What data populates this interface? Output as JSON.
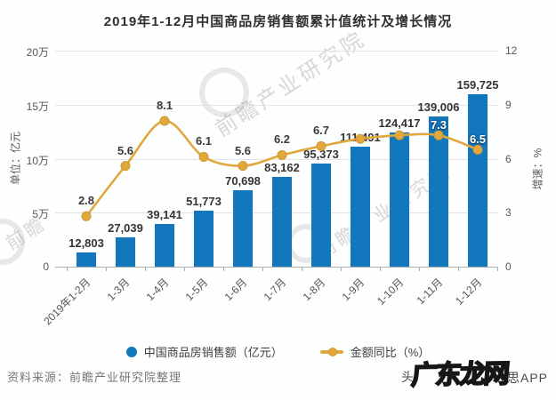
{
  "title": "2019年1-12月中国商品房销售额累计值统计及增长情况",
  "source": "资料来源：前瞻产业研究院整理",
  "colors": {
    "bar": "#1377BE",
    "line": "#E1A83E",
    "grid": "#e3e3e3",
    "label_dark": "#343434",
    "label_white": "#ffffff"
  },
  "chart_data": {
    "type": "bar",
    "subtype": "bar+line combo",
    "title": "2019年1-12月中国商品房销售额累计值统计及增长情况",
    "categories": [
      "2019年1-2月",
      "1-3月",
      "1-4月",
      "1-5月",
      "1-6月",
      "1-7月",
      "1-8月",
      "1-9月",
      "1-10月",
      "1-11月",
      "1-12月"
    ],
    "bar_series": {
      "name": "中国商品房销售额（亿元）",
      "values": [
        12803,
        27039,
        39141,
        51773,
        70698,
        83162,
        95373,
        111491,
        124417,
        139006,
        159725
      ],
      "labels": [
        "12,803",
        "27,039",
        "39,141",
        "51,773",
        "70,698",
        "83,162",
        "95,373",
        "111,491",
        "124,417",
        "139,006",
        "159,725"
      ],
      "color": "#1377BE"
    },
    "line_series": {
      "name": "金额同比（%）",
      "values": [
        2.8,
        5.6,
        8.1,
        6.1,
        5.6,
        6.2,
        6.7,
        7.1,
        7.3,
        7.3,
        6.5
      ],
      "label_style": [
        "dark",
        "dark",
        "dark",
        "dark",
        "dark",
        "dark",
        "dark",
        "none",
        "none",
        "white",
        "white"
      ],
      "color": "#E1A83E"
    },
    "left_axis": {
      "title": "单位：亿元",
      "ticks": [
        "0",
        "5万",
        "10万",
        "15万",
        "20万"
      ],
      "min": 0,
      "max": 200000
    },
    "right_axis": {
      "title": "增速：%",
      "ticks": [
        "0",
        "3",
        "6",
        "9",
        "12"
      ],
      "min": 0,
      "max": 12
    },
    "grid": true,
    "legend_position": "bottom"
  },
  "legend": {
    "bar_label": "中国商品房销售额（亿元）",
    "line_label": "金额同比（%）"
  },
  "watermarks": {
    "diagonal_text": "前瞻产业研究院",
    "diagonal_text_short": "前瞻",
    "corner_logo": "广东龙网",
    "corner_small_prefix": "头",
    "corner_small_suffix": "思APP"
  }
}
